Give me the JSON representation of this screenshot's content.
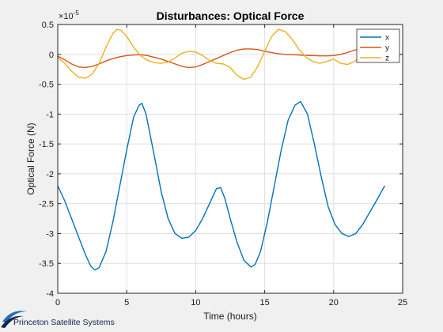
{
  "chart_data": {
    "type": "line",
    "title": "Disturbances: Optical Force",
    "xlabel": "Time (hours)",
    "ylabel": "Optical Force (N)",
    "y_exponent": "×10",
    "y_exponent_power": "-5",
    "xlim": [
      0,
      25
    ],
    "ylim": [
      -4,
      0.5
    ],
    "x_ticks": [
      0,
      5,
      10,
      15,
      20,
      25
    ],
    "x_tick_labels": [
      "0",
      "5",
      "10",
      "15",
      "20",
      "25"
    ],
    "y_ticks": [
      0.5,
      0,
      -0.5,
      -1,
      -1.5,
      -2,
      -2.5,
      -3,
      -3.5,
      -4
    ],
    "y_tick_labels": [
      "0.5",
      "0",
      "-0.5",
      "-1",
      "-1.5",
      "-2",
      "-2.5",
      "-3",
      "-3.5",
      "-4"
    ],
    "grid": true,
    "legend_position": "top-right",
    "series": [
      {
        "name": "x",
        "color": "#0072bd",
        "points": [
          [
            0,
            -2.2
          ],
          [
            0.5,
            -2.45
          ],
          [
            1.0,
            -2.75
          ],
          [
            1.5,
            -3.05
          ],
          [
            2.0,
            -3.35
          ],
          [
            2.4,
            -3.55
          ],
          [
            2.7,
            -3.61
          ],
          [
            3.0,
            -3.57
          ],
          [
            3.5,
            -3.3
          ],
          [
            4.0,
            -2.8
          ],
          [
            4.5,
            -2.2
          ],
          [
            5.0,
            -1.6
          ],
          [
            5.5,
            -1.05
          ],
          [
            5.9,
            -0.85
          ],
          [
            6.1,
            -0.82
          ],
          [
            6.4,
            -1.0
          ],
          [
            7.0,
            -1.7
          ],
          [
            7.5,
            -2.3
          ],
          [
            8.0,
            -2.75
          ],
          [
            8.5,
            -3.0
          ],
          [
            9.0,
            -3.08
          ],
          [
            9.5,
            -3.06
          ],
          [
            10.0,
            -2.95
          ],
          [
            10.5,
            -2.75
          ],
          [
            11.0,
            -2.5
          ],
          [
            11.5,
            -2.25
          ],
          [
            11.8,
            -2.23
          ],
          [
            12.1,
            -2.4
          ],
          [
            12.5,
            -2.75
          ],
          [
            13.0,
            -3.15
          ],
          [
            13.5,
            -3.45
          ],
          [
            14.0,
            -3.56
          ],
          [
            14.3,
            -3.52
          ],
          [
            14.7,
            -3.3
          ],
          [
            15.2,
            -2.8
          ],
          [
            15.7,
            -2.2
          ],
          [
            16.2,
            -1.6
          ],
          [
            16.7,
            -1.1
          ],
          [
            17.2,
            -0.85
          ],
          [
            17.6,
            -0.79
          ],
          [
            18.1,
            -1.0
          ],
          [
            18.6,
            -1.5
          ],
          [
            19.1,
            -2.05
          ],
          [
            19.6,
            -2.55
          ],
          [
            20.1,
            -2.85
          ],
          [
            20.6,
            -3.0
          ],
          [
            21.1,
            -3.05
          ],
          [
            21.6,
            -3.0
          ],
          [
            22.1,
            -2.85
          ],
          [
            22.6,
            -2.65
          ],
          [
            23.1,
            -2.45
          ],
          [
            23.7,
            -2.2
          ]
        ]
      },
      {
        "name": "y",
        "color": "#d95319",
        "points": [
          [
            0,
            -0.03
          ],
          [
            0.5,
            -0.09
          ],
          [
            1.0,
            -0.16
          ],
          [
            1.5,
            -0.21
          ],
          [
            2.0,
            -0.22
          ],
          [
            2.5,
            -0.2
          ],
          [
            3.0,
            -0.16
          ],
          [
            3.5,
            -0.11
          ],
          [
            4.0,
            -0.07
          ],
          [
            4.5,
            -0.04
          ],
          [
            5.0,
            -0.02
          ],
          [
            5.5,
            -0.01
          ],
          [
            6.0,
            -0.005
          ],
          [
            6.5,
            -0.02
          ],
          [
            7.0,
            -0.05
          ],
          [
            7.5,
            -0.08
          ],
          [
            8.0,
            -0.12
          ],
          [
            8.5,
            -0.16
          ],
          [
            9.0,
            -0.2
          ],
          [
            9.5,
            -0.22
          ],
          [
            10.0,
            -0.21
          ],
          [
            10.5,
            -0.17
          ],
          [
            11.0,
            -0.12
          ],
          [
            11.5,
            -0.07
          ],
          [
            12.0,
            -0.02
          ],
          [
            12.5,
            0.03
          ],
          [
            13.0,
            0.07
          ],
          [
            13.5,
            0.09
          ],
          [
            14.0,
            0.09
          ],
          [
            14.5,
            0.08
          ],
          [
            15.0,
            0.05
          ],
          [
            15.5,
            0.03
          ],
          [
            16.0,
            0.01
          ],
          [
            16.5,
            0.0
          ],
          [
            17.0,
            -0.005
          ],
          [
            17.5,
            -0.01
          ],
          [
            18.0,
            -0.02
          ],
          [
            18.5,
            -0.02
          ],
          [
            19.0,
            -0.025
          ],
          [
            19.5,
            -0.025
          ],
          [
            20.0,
            -0.02
          ],
          [
            20.5,
            0.0
          ],
          [
            21.0,
            0.03
          ],
          [
            21.5,
            0.07
          ],
          [
            22.0,
            0.1
          ],
          [
            22.5,
            0.11
          ],
          [
            23.0,
            0.1
          ],
          [
            23.7,
            0.08
          ]
        ]
      },
      {
        "name": "z",
        "color": "#edb120",
        "points": [
          [
            0,
            -0.05
          ],
          [
            0.5,
            -0.15
          ],
          [
            1.0,
            -0.28
          ],
          [
            1.5,
            -0.38
          ],
          [
            2.0,
            -0.4
          ],
          [
            2.5,
            -0.33
          ],
          [
            3.0,
            -0.15
          ],
          [
            3.5,
            0.12
          ],
          [
            4.0,
            0.35
          ],
          [
            4.3,
            0.42
          ],
          [
            4.6,
            0.4
          ],
          [
            5.0,
            0.3
          ],
          [
            5.5,
            0.12
          ],
          [
            6.0,
            -0.02
          ],
          [
            6.5,
            -0.1
          ],
          [
            7.0,
            -0.14
          ],
          [
            7.5,
            -0.15
          ],
          [
            8.0,
            -0.13
          ],
          [
            8.5,
            -0.06
          ],
          [
            9.0,
            0.02
          ],
          [
            9.5,
            0.05
          ],
          [
            10.0,
            0.04
          ],
          [
            10.5,
            -0.02
          ],
          [
            11.0,
            -0.1
          ],
          [
            11.5,
            -0.15
          ],
          [
            12.0,
            -0.16
          ],
          [
            12.5,
            -0.22
          ],
          [
            13.0,
            -0.35
          ],
          [
            13.5,
            -0.42
          ],
          [
            14.0,
            -0.38
          ],
          [
            14.5,
            -0.2
          ],
          [
            15.0,
            0.05
          ],
          [
            15.5,
            0.3
          ],
          [
            16.0,
            0.42
          ],
          [
            16.5,
            0.38
          ],
          [
            17.0,
            0.25
          ],
          [
            17.5,
            0.08
          ],
          [
            18.0,
            -0.05
          ],
          [
            18.5,
            -0.12
          ],
          [
            19.0,
            -0.15
          ],
          [
            19.5,
            -0.12
          ],
          [
            20.0,
            -0.08
          ],
          [
            20.5,
            -0.15
          ],
          [
            21.0,
            -0.17
          ],
          [
            21.5,
            -0.12
          ],
          [
            22.0,
            -0.03
          ],
          [
            22.5,
            0.03
          ],
          [
            23.0,
            0.06
          ],
          [
            23.7,
            0.08
          ]
        ]
      }
    ]
  },
  "footer": {
    "logo_text": "Princeton Satellite Systems",
    "logo_color": "#14214b",
    "logo_accent": "#1f6fb8"
  }
}
